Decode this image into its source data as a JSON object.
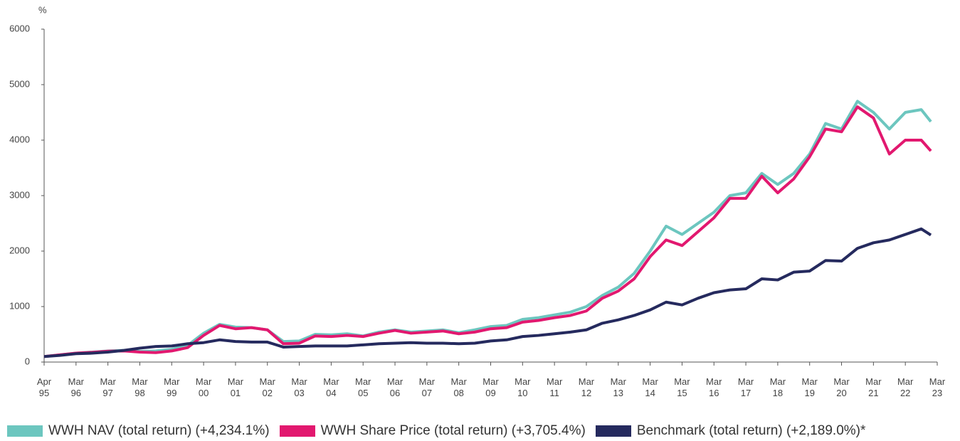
{
  "chart_data": {
    "type": "line",
    "y_label": "%",
    "x": [
      0,
      0.5,
      1,
      1.5,
      2,
      2.5,
      3,
      3.5,
      4,
      4.5,
      5,
      5.5,
      6,
      6.5,
      7,
      7.5,
      8,
      8.5,
      9,
      9.5,
      10,
      10.5,
      11,
      11.5,
      12,
      12.5,
      13,
      13.5,
      14,
      14.5,
      15,
      15.5,
      16,
      16.5,
      17,
      17.5,
      18,
      18.5,
      19,
      19.5,
      20,
      20.5,
      21,
      21.5,
      22,
      22.5,
      23,
      23.5,
      24,
      24.5,
      25,
      25.5,
      26,
      26.5,
      27,
      27.5,
      27.8
    ],
    "xlim": [
      0,
      28
    ],
    "xticks": [
      {
        "value": 0,
        "label": "Apr\n95"
      },
      {
        "value": 1,
        "label": "Mar\n96"
      },
      {
        "value": 2,
        "label": "Mar\n97"
      },
      {
        "value": 3,
        "label": "Mar\n98"
      },
      {
        "value": 4,
        "label": "Mar\n99"
      },
      {
        "value": 5,
        "label": "Mar\n00"
      },
      {
        "value": 6,
        "label": "Mar\n01"
      },
      {
        "value": 7,
        "label": "Mar\n02"
      },
      {
        "value": 8,
        "label": "Mar\n03"
      },
      {
        "value": 9,
        "label": "Mar\n04"
      },
      {
        "value": 10,
        "label": "Mar\n05"
      },
      {
        "value": 11,
        "label": "Mar\n06"
      },
      {
        "value": 12,
        "label": "Mar\n07"
      },
      {
        "value": 13,
        "label": "Mar\n08"
      },
      {
        "value": 14,
        "label": "Mar\n09"
      },
      {
        "value": 15,
        "label": "Mar\n10"
      },
      {
        "value": 16,
        "label": "Mar\n11"
      },
      {
        "value": 17,
        "label": "Mar\n12"
      },
      {
        "value": 18,
        "label": "Mar\n13"
      },
      {
        "value": 19,
        "label": "Mar\n14"
      },
      {
        "value": 20,
        "label": "Mar\n15"
      },
      {
        "value": 21,
        "label": "Mar\n16"
      },
      {
        "value": 22,
        "label": "Mar\n17"
      },
      {
        "value": 23,
        "label": "Mar\n18"
      },
      {
        "value": 24,
        "label": "Mar\n19"
      },
      {
        "value": 25,
        "label": "Mar\n20"
      },
      {
        "value": 26,
        "label": "Mar\n21"
      },
      {
        "value": 27,
        "label": "Mar\n22"
      },
      {
        "value": 28,
        "label": "Mar\n23"
      }
    ],
    "ylim": [
      0,
      6000
    ],
    "yticks": [
      0,
      1000,
      2000,
      3000,
      4000,
      5000,
      6000
    ],
    "grid": false,
    "series": [
      {
        "name": "WWH NAV (total return) (+4,234.1%)",
        "color": "#6cc6bf",
        "values": [
          100,
          130,
          160,
          180,
          200,
          210,
          190,
          200,
          230,
          300,
          520,
          680,
          630,
          620,
          580,
          370,
          380,
          500,
          490,
          510,
          470,
          540,
          580,
          540,
          560,
          580,
          530,
          580,
          640,
          660,
          770,
          800,
          850,
          900,
          1000,
          1200,
          1350,
          1600,
          2000,
          2450,
          2300,
          2500,
          2700,
          3000,
          3050,
          3400,
          3200,
          3400,
          3750,
          4300,
          4200,
          4700,
          4500,
          4200,
          4500,
          4550,
          4334
        ]
      },
      {
        "name": "WWH Share Price (total return) (+3,705.4%)",
        "color": "#e2186f",
        "values": [
          100,
          130,
          160,
          175,
          195,
          200,
          180,
          170,
          200,
          260,
          480,
          660,
          600,
          620,
          580,
          330,
          340,
          470,
          460,
          480,
          460,
          520,
          570,
          520,
          540,
          560,
          510,
          540,
          600,
          620,
          720,
          750,
          800,
          840,
          920,
          1150,
          1280,
          1500,
          1900,
          2200,
          2100,
          2350,
          2600,
          2950,
          2950,
          3350,
          3050,
          3300,
          3700,
          4200,
          4150,
          4600,
          4400,
          3750,
          4000,
          4000,
          3805
        ]
      },
      {
        "name": "Benchmark (total return) (+2,189.0%)*",
        "color": "#252a5e",
        "values": [
          100,
          120,
          150,
          160,
          180,
          210,
          250,
          280,
          290,
          330,
          350,
          400,
          370,
          360,
          360,
          270,
          280,
          290,
          290,
          290,
          310,
          330,
          340,
          350,
          340,
          340,
          330,
          340,
          380,
          400,
          460,
          480,
          510,
          540,
          580,
          700,
          760,
          840,
          940,
          1080,
          1030,
          1150,
          1250,
          1300,
          1320,
          1500,
          1480,
          1620,
          1640,
          1830,
          1820,
          2050,
          2150,
          2200,
          2300,
          2400,
          2289
        ]
      }
    ]
  }
}
